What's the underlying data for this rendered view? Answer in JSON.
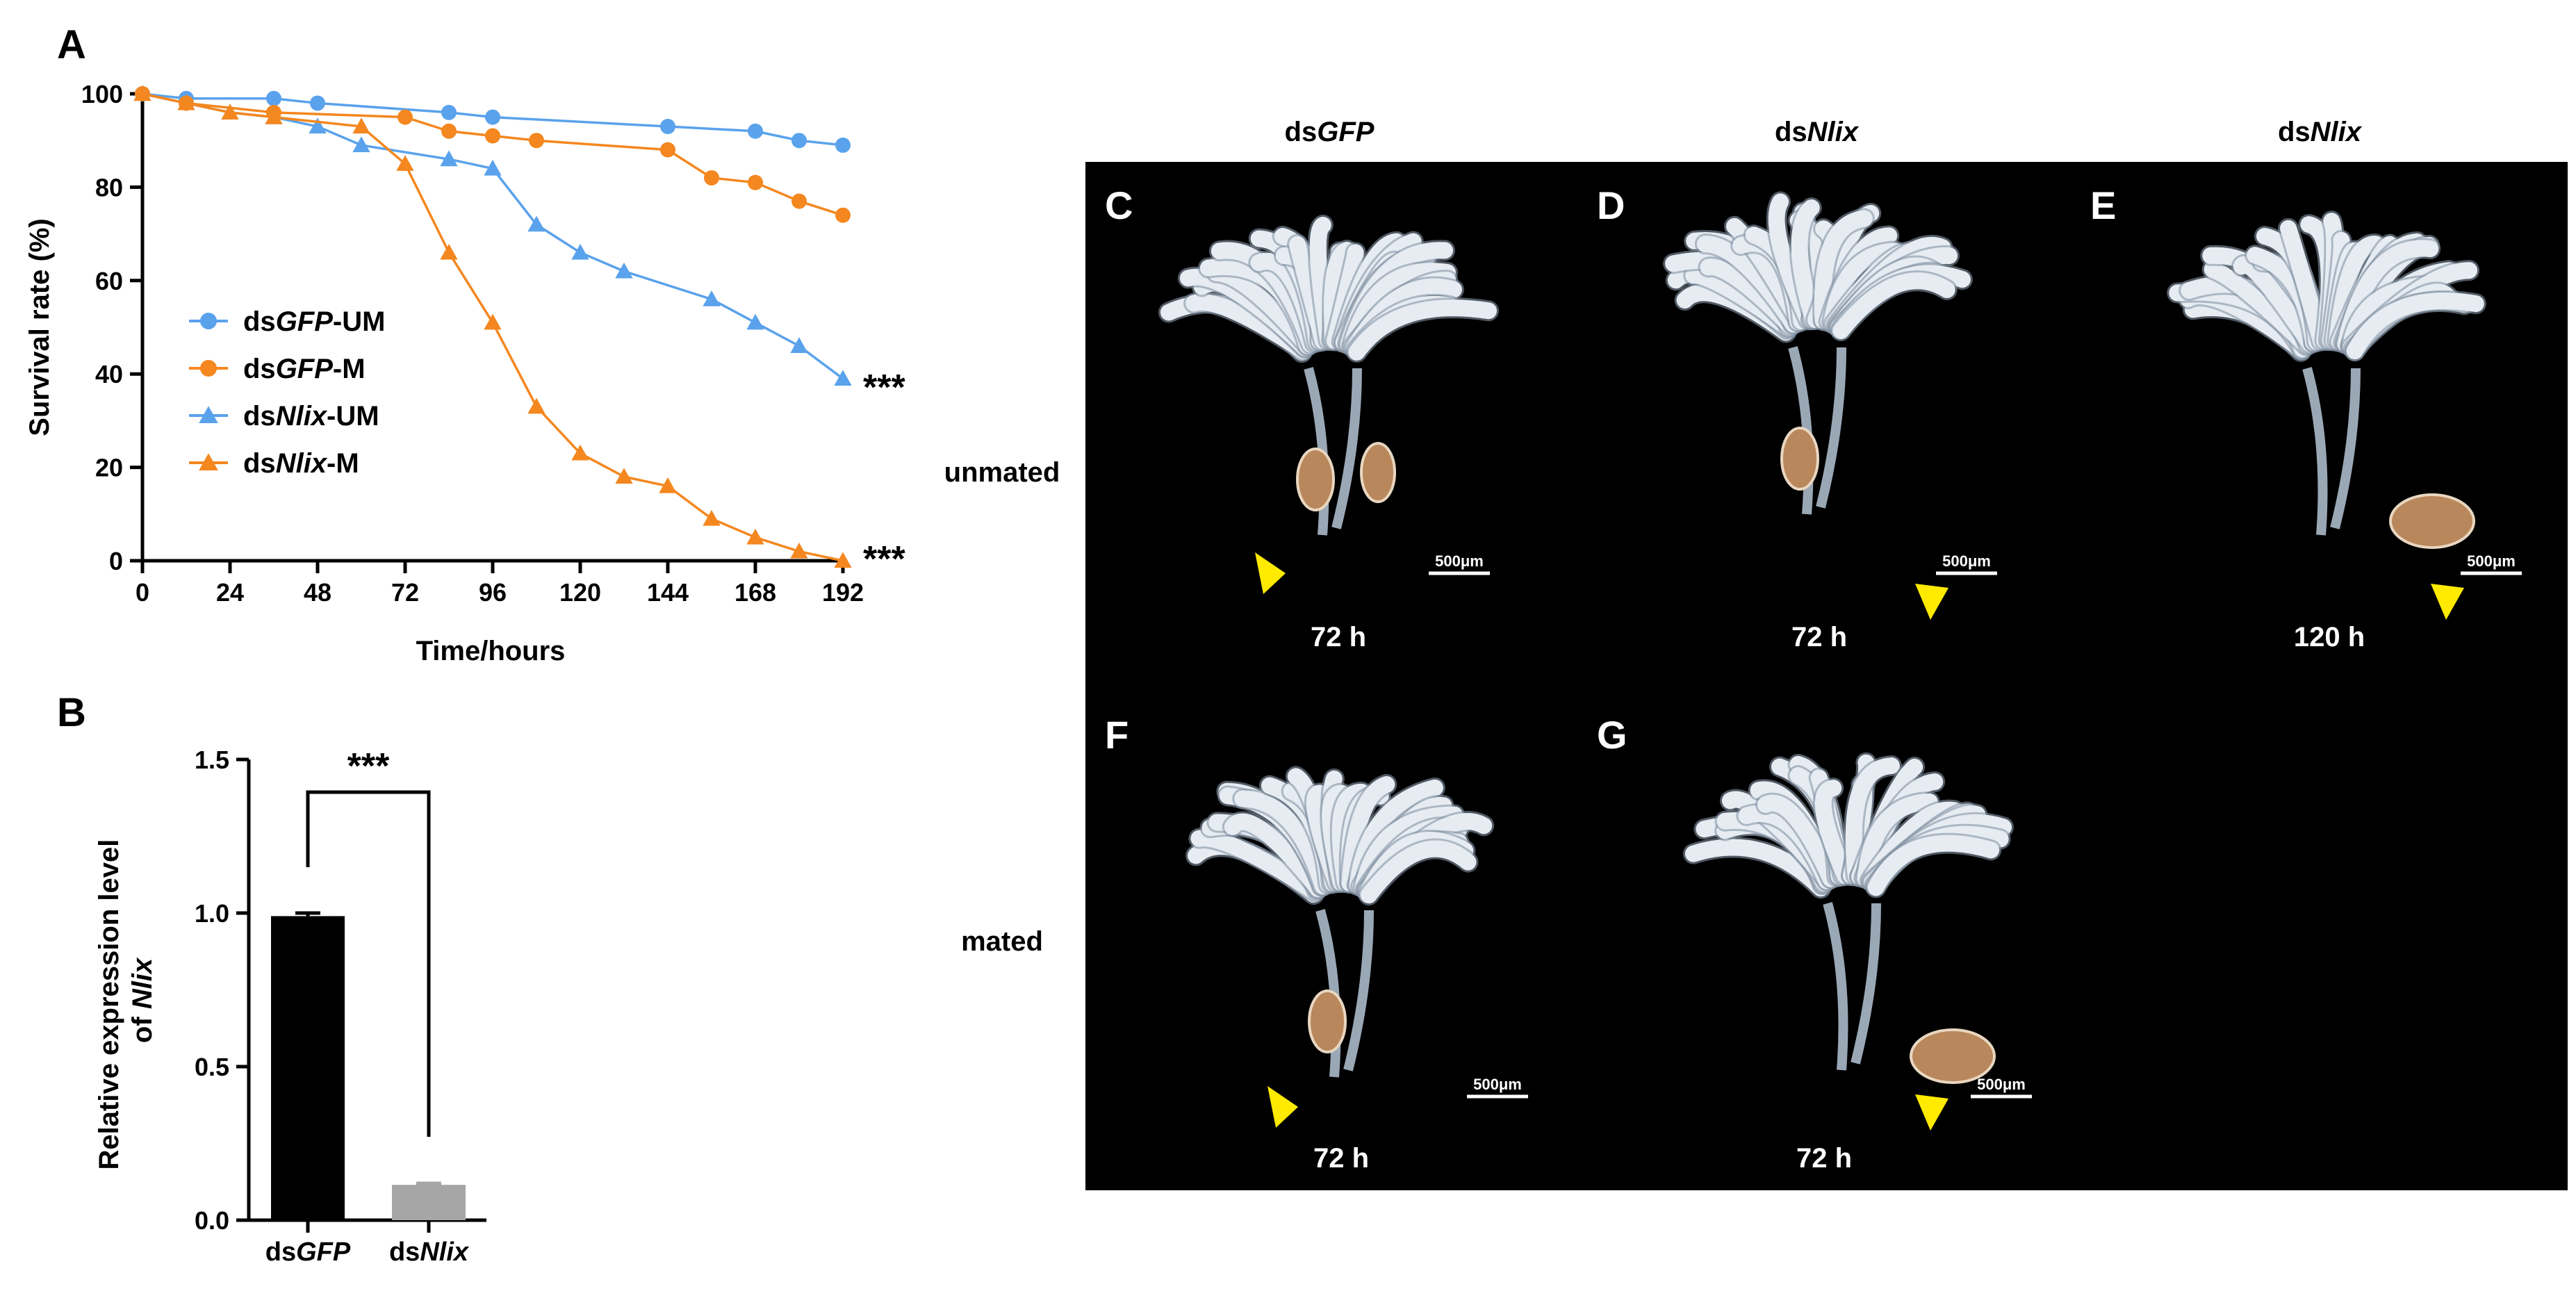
{
  "panels": {
    "A": "A",
    "B": "B",
    "C": "C",
    "D": "D",
    "E": "E",
    "F": "F",
    "G": "G"
  },
  "micrographs": {
    "columns": [
      {
        "pre": "ds",
        "it": "GFP"
      },
      {
        "pre": "ds",
        "it": "Nlix"
      },
      {
        "pre": "ds",
        "it": "Nlix"
      }
    ],
    "rows": [
      "unmated",
      "mated"
    ],
    "times": {
      "C": "72 h",
      "D": "72 h",
      "E": "120 h",
      "F": "72 h",
      "G": "72 h"
    },
    "scale_bar": "500μm",
    "colors": {
      "background": "#000000",
      "arrowhead": "#ffea00",
      "ovariole": "#e6ecf2",
      "spermatheca": "#b8875b"
    }
  },
  "chart_data": [
    {
      "type": "line",
      "panel": "A",
      "xlabel": "Time/hours",
      "ylabel": "Survival rate (%)",
      "xlim": [
        0,
        192
      ],
      "ylim": [
        0,
        100
      ],
      "xticks": [
        0,
        24,
        48,
        72,
        96,
        120,
        144,
        168,
        192
      ],
      "yticks": [
        0,
        20,
        40,
        60,
        80,
        100
      ],
      "grid": false,
      "legend": "left",
      "series": [
        {
          "name": {
            "pre": "ds",
            "it": "GFP",
            "post": "-UM"
          },
          "color": "#5aa2ec",
          "marker": "circle",
          "x": [
            0,
            12,
            36,
            48,
            84,
            96,
            144,
            168,
            180,
            192
          ],
          "y": [
            100,
            99,
            99,
            98,
            96,
            95,
            93,
            92,
            90,
            89
          ]
        },
        {
          "name": {
            "pre": "ds",
            "it": "GFP",
            "post": "-M"
          },
          "color": "#f4871f",
          "marker": "circle",
          "x": [
            0,
            12,
            36,
            72,
            84,
            96,
            108,
            144,
            156,
            168,
            180,
            192
          ],
          "y": [
            100,
            98,
            96,
            95,
            92,
            91,
            90,
            88,
            82,
            81,
            77,
            74
          ]
        },
        {
          "name": {
            "pre": "ds",
            "it": "Nlix",
            "post": "-UM"
          },
          "color": "#5aa2ec",
          "marker": "triangle",
          "x": [
            0,
            12,
            24,
            36,
            48,
            60,
            84,
            96,
            108,
            120,
            132,
            156,
            168,
            180,
            192
          ],
          "y": [
            100,
            98,
            96,
            95,
            93,
            89,
            86,
            84,
            72,
            66,
            62,
            56,
            51,
            46,
            39
          ]
        },
        {
          "name": {
            "pre": "ds",
            "it": "Nlix",
            "post": "-M"
          },
          "color": "#f4871f",
          "marker": "triangle",
          "x": [
            0,
            12,
            24,
            36,
            60,
            72,
            84,
            96,
            108,
            120,
            132,
            144,
            156,
            168,
            180,
            192
          ],
          "y": [
            100,
            98,
            96,
            95,
            93,
            85,
            66,
            51,
            33,
            23,
            18,
            16,
            9,
            5,
            2,
            0
          ]
        }
      ],
      "annotations": [
        "***",
        "***"
      ]
    },
    {
      "type": "bar",
      "panel": "B",
      "categories": [
        {
          "pre": "ds",
          "it": "GFP"
        },
        {
          "pre": "ds",
          "it": "Nlix"
        }
      ],
      "values": [
        0.99,
        0.115
      ],
      "errors": [
        0.01,
        0.005
      ],
      "colors": [
        "#000000",
        "#a6a6a6"
      ],
      "ylabel": {
        "line1": "Relative expression level",
        "line2_pre": "of ",
        "line2_it": "Nlix"
      },
      "ylim": [
        0,
        1.5
      ],
      "yticks": [
        "0.0",
        "0.5",
        "1.0",
        "1.5"
      ],
      "significance": "***"
    }
  ]
}
